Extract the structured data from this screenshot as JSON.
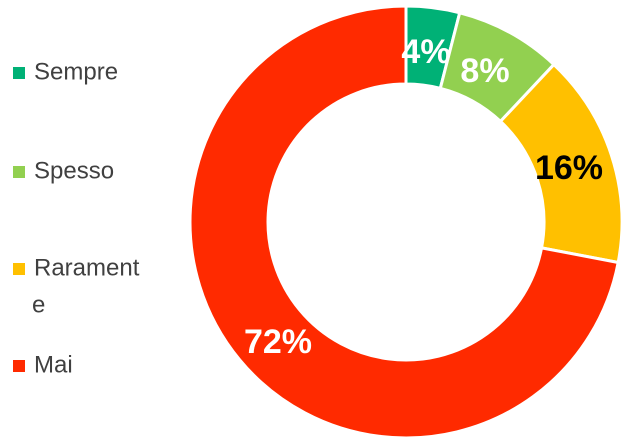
{
  "chart_data": {
    "type": "doughnut",
    "title": "",
    "categories": [
      "Sempre",
      "Spesso",
      "Raramente",
      "Mai"
    ],
    "values": [
      4,
      8,
      16,
      72
    ],
    "data_labels": [
      "4%",
      "8%",
      "16%",
      "72%"
    ],
    "colors": [
      "#00B176",
      "#92D050",
      "#FFC000",
      "#FF2A00"
    ],
    "label_colors": [
      "#FFFFFF",
      "#FFFFFF",
      "#000000",
      "#FFFFFF"
    ],
    "legend": {
      "position": "left",
      "items": [
        {
          "label": "Sempre",
          "lines": [
            "Sempre"
          ]
        },
        {
          "label": "Spesso",
          "lines": [
            "Spesso"
          ]
        },
        {
          "label": "Raramente",
          "lines": [
            "Rarament",
            "e"
          ]
        },
        {
          "label": "Mai",
          "lines": [
            "Mai"
          ]
        }
      ]
    }
  }
}
